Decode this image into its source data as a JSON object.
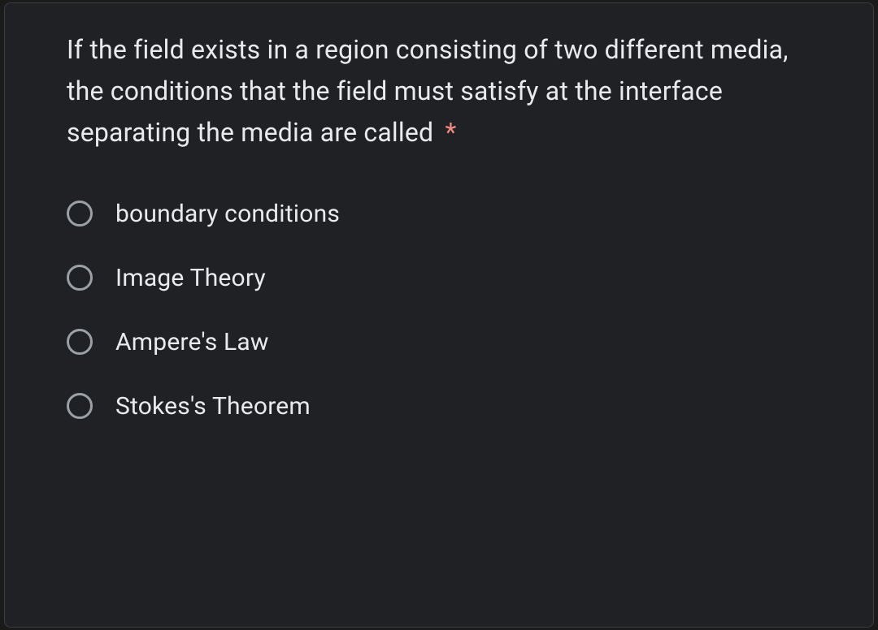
{
  "question": {
    "text": "If the field exists in a region consisting of two different media, the conditions that the field must satisfy at the interface separating the media are called",
    "required_marker": "*"
  },
  "options": [
    {
      "label": "boundary conditions"
    },
    {
      "label": "Image Theory"
    },
    {
      "label": "Ampere's Law"
    },
    {
      "label": "Stokes's Theorem"
    }
  ],
  "colors": {
    "background": "#1a1a1a",
    "card_background": "#202124",
    "card_border": "#3c4043",
    "text": "#e8eaed",
    "required": "#f28b82",
    "radio_border": "#9aa0a6"
  }
}
